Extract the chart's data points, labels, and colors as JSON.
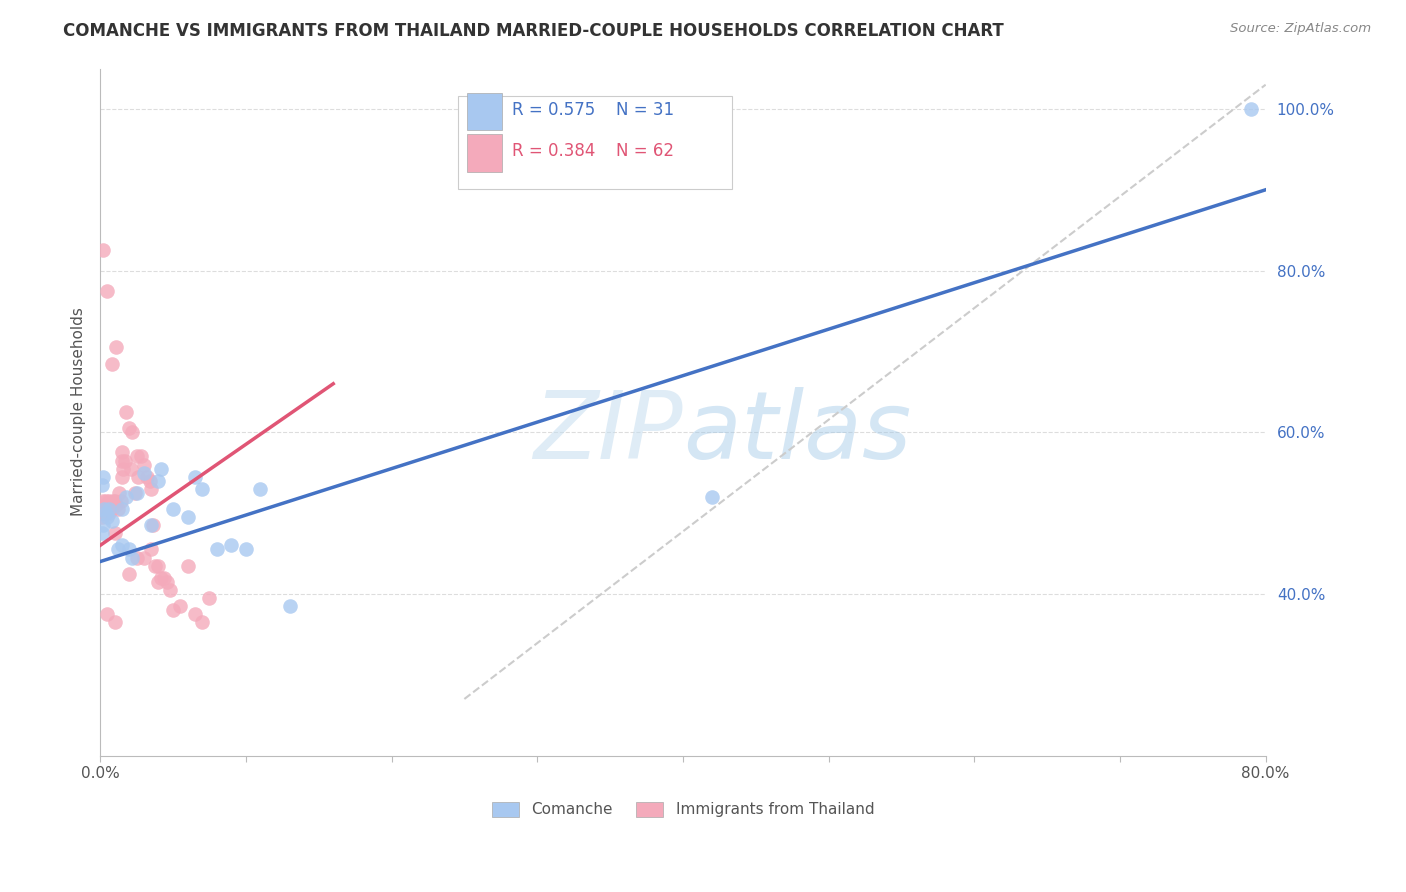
{
  "title": "COMANCHE VS IMMIGRANTS FROM THAILAND MARRIED-COUPLE HOUSEHOLDS CORRELATION CHART",
  "source": "Source: ZipAtlas.com",
  "ylabel": "Married-couple Households",
  "xlim": [
    0.0,
    0.8
  ],
  "ylim": [
    0.2,
    1.05
  ],
  "ytick_values": [
    0.4,
    0.6,
    0.8,
    1.0
  ],
  "ytick_labels": [
    "40.0%",
    "60.0%",
    "80.0%",
    "100.0%"
  ],
  "xtick_values": [
    0.0,
    0.1,
    0.2,
    0.3,
    0.4,
    0.5,
    0.6,
    0.7,
    0.8
  ],
  "xtick_labels": [
    "0.0%",
    "",
    "",
    "",
    "",
    "",
    "",
    "",
    "80.0%"
  ],
  "legend_R_blue": "0.575",
  "legend_N_blue": "31",
  "legend_R_pink": "0.384",
  "legend_N_pink": "62",
  "blue_color": "#A8C8F0",
  "pink_color": "#F4AABB",
  "blue_line_color": "#4472C4",
  "pink_line_color": "#E05575",
  "diag_color": "#CCCCCC",
  "watermark_color": "#D6E9F8",
  "comanche_x": [
    0.001,
    0.002,
    0.003,
    0.001,
    0.002,
    0.004,
    0.005,
    0.006,
    0.008,
    0.012,
    0.015,
    0.015,
    0.018,
    0.02,
    0.022,
    0.025,
    0.03,
    0.035,
    0.04,
    0.042,
    0.05,
    0.06,
    0.065,
    0.07,
    0.08,
    0.09,
    0.1,
    0.11,
    0.13,
    0.42,
    0.79
  ],
  "comanche_y": [
    0.535,
    0.545,
    0.505,
    0.475,
    0.485,
    0.5,
    0.495,
    0.505,
    0.49,
    0.455,
    0.46,
    0.505,
    0.52,
    0.455,
    0.445,
    0.525,
    0.55,
    0.485,
    0.54,
    0.555,
    0.505,
    0.495,
    0.545,
    0.53,
    0.455,
    0.46,
    0.455,
    0.53,
    0.385,
    0.52,
    1.0
  ],
  "thailand_x": [
    0.001,
    0.001,
    0.002,
    0.002,
    0.003,
    0.003,
    0.004,
    0.004,
    0.005,
    0.005,
    0.006,
    0.006,
    0.007,
    0.008,
    0.009,
    0.01,
    0.01,
    0.011,
    0.012,
    0.013,
    0.014,
    0.015,
    0.015,
    0.016,
    0.017,
    0.018,
    0.02,
    0.021,
    0.022,
    0.024,
    0.025,
    0.026,
    0.028,
    0.03,
    0.032,
    0.034,
    0.035,
    0.036,
    0.038,
    0.04,
    0.042,
    0.044,
    0.046,
    0.048,
    0.05,
    0.055,
    0.06,
    0.065,
    0.07,
    0.075,
    0.002,
    0.005,
    0.008,
    0.011,
    0.015,
    0.02,
    0.025,
    0.03,
    0.035,
    0.04,
    0.005,
    0.01
  ],
  "thailand_y": [
    0.495,
    0.505,
    0.5,
    0.515,
    0.505,
    0.5,
    0.515,
    0.51,
    0.505,
    0.51,
    0.5,
    0.515,
    0.51,
    0.505,
    0.515,
    0.475,
    0.515,
    0.51,
    0.505,
    0.525,
    0.515,
    0.545,
    0.575,
    0.555,
    0.565,
    0.625,
    0.605,
    0.555,
    0.6,
    0.525,
    0.57,
    0.545,
    0.57,
    0.56,
    0.545,
    0.54,
    0.53,
    0.485,
    0.435,
    0.435,
    0.42,
    0.42,
    0.415,
    0.405,
    0.38,
    0.385,
    0.435,
    0.375,
    0.365,
    0.395,
    0.825,
    0.775,
    0.685,
    0.705,
    0.565,
    0.425,
    0.445,
    0.445,
    0.455,
    0.415,
    0.375,
    0.365
  ],
  "blue_line_x": [
    0.0,
    0.8
  ],
  "blue_line_y": [
    0.44,
    0.9
  ],
  "pink_line_x": [
    0.0,
    0.16
  ],
  "pink_line_y": [
    0.46,
    0.66
  ],
  "diag_line_x": [
    0.25,
    0.8
  ],
  "diag_line_y": [
    0.27,
    1.03
  ]
}
